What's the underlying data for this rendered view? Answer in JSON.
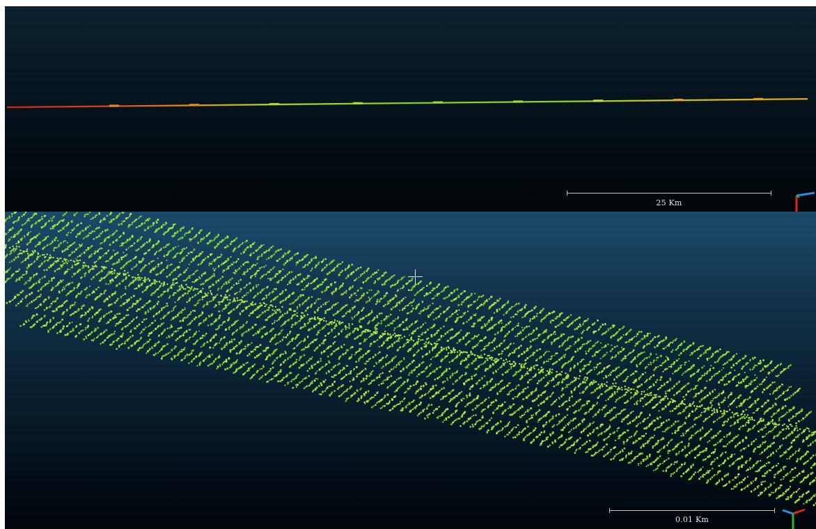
{
  "app": {
    "description_visible_text_only": true
  },
  "views": {
    "top": {
      "scale_label": "25 Km"
    },
    "bottom": {
      "scale_label": "0.01 Km"
    }
  },
  "colors": {
    "top_background": "#0c2230",
    "bottom_background": "#1c4a6c",
    "point_green": "#7fd62a",
    "point_red": "#d4281e",
    "point_orange": "#e88a1c",
    "axis_x": "#e0251b",
    "axis_y": "#2bb52b",
    "axis_z": "#2a8fe0"
  }
}
